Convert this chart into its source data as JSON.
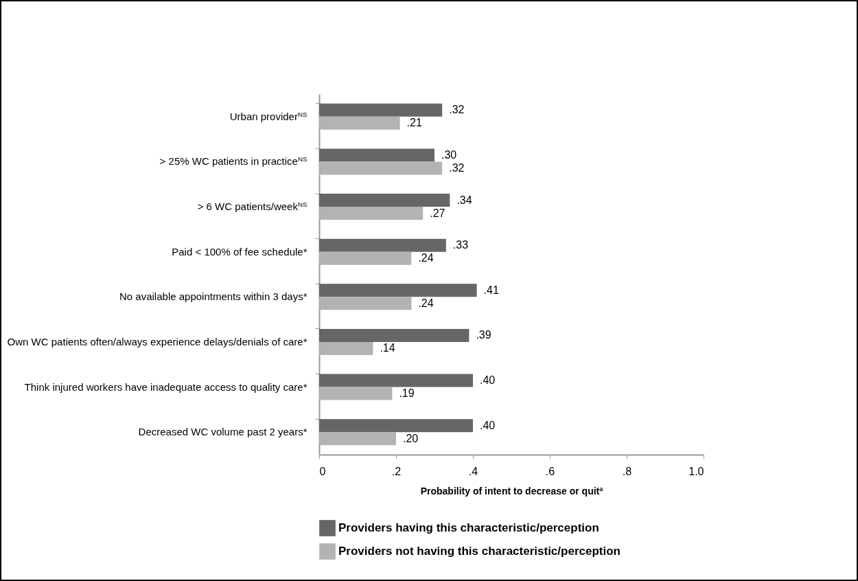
{
  "chart_data": {
    "type": "bar",
    "orientation": "horizontal",
    "xlabel": "Probability of intent to decrease or quit$^{a}$",
    "categories": [
      "Urban provider$^{NS}$",
      "> 25% WC patients in practice$^{NS}$",
      "> 6 WC patients/week$^{NS}$",
      "Paid < 100% of fee schedule*",
      "No available appointments within 3 days*",
      "Own WC patients often/always experience delays/denials of care*",
      "Think injured workers have inadequate access to quality care*",
      "Decreased WC volume past 2 years*"
    ],
    "series": [
      {
        "name": "Providers having this characteristic/perception",
        "color": "#666666",
        "values": [
          0.32,
          0.3,
          0.34,
          0.33,
          0.41,
          0.39,
          0.4,
          0.4
        ],
        "value_labels": [
          ".32",
          ".30",
          ".34",
          ".33",
          ".41",
          ".39",
          ".40",
          ".40"
        ]
      },
      {
        "name": "Providers not having this characteristic/perception",
        "color": "#b3b3b3",
        "values": [
          0.21,
          0.32,
          0.27,
          0.24,
          0.24,
          0.14,
          0.19,
          0.2
        ],
        "value_labels": [
          ".21",
          ".32",
          ".27",
          ".24",
          ".24",
          ".14",
          ".19",
          ".20"
        ]
      }
    ],
    "xlim": [
      0,
      1.0
    ],
    "xticks": [
      0,
      {
        "value": 0.2,
        "label": ".2"
      },
      {
        "value": 0.4,
        "label": ".4"
      },
      {
        "value": 0.6,
        "label": ".6"
      },
      {
        "value": 0.8,
        "label": ".8"
      },
      {
        "value": 1.0,
        "label": "1.0"
      }
    ],
    "grid": false,
    "legend": "bottom"
  }
}
